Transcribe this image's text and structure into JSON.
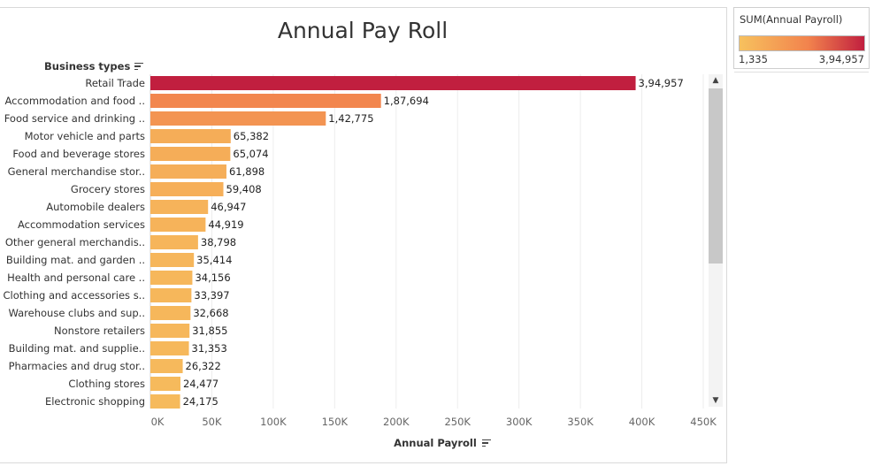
{
  "chart_data": {
    "type": "bar",
    "orientation": "horizontal",
    "title": "Annual Pay Roll",
    "row_header": "Business types",
    "xlabel": "Annual Payroll",
    "xlim": [
      0,
      450000
    ],
    "x_ticks": [
      0,
      50000,
      100000,
      150000,
      200000,
      250000,
      300000,
      350000,
      400000,
      450000
    ],
    "x_tick_labels": [
      "0K",
      "50K",
      "100K",
      "150K",
      "200K",
      "250K",
      "300K",
      "350K",
      "400K",
      "450K"
    ],
    "grid": "vertical gridlines",
    "categories": [
      "Retail Trade",
      "Accommodation and food ..",
      "Food service and drinking ..",
      "Motor vehicle and parts",
      "Food and beverage stores",
      "General merchandise stor..",
      "Grocery stores",
      "Automobile dealers",
      "Accommodation services",
      "Other general merchandis..",
      "Building mat. and garden ..",
      "Health and personal care ..",
      "Clothing and accessories s..",
      "Warehouse clubs and sup..",
      "Nonstore retailers",
      "Building mat. and supplie..",
      "Pharmacies and drug stor..",
      "Clothing stores",
      "Electronic shopping"
    ],
    "values": [
      394957,
      187694,
      142775,
      65382,
      65074,
      61898,
      59408,
      46947,
      44919,
      38798,
      35414,
      34156,
      33397,
      32668,
      31855,
      31353,
      26322,
      24477,
      24175
    ],
    "value_labels": [
      "3,94,957",
      "1,87,694",
      "1,42,775",
      "65,382",
      "65,074",
      "61,898",
      "59,408",
      "46,947",
      "44,919",
      "38,798",
      "35,414",
      "34,156",
      "33,397",
      "32,668",
      "31,855",
      "31,353",
      "26,322",
      "24,477",
      "24,175"
    ],
    "color_legend": {
      "title": "SUM(Annual Payroll)",
      "min_label": "1,335",
      "max_label": "3,94,957",
      "min": 1335,
      "max": 394957,
      "low_color": "#f7c15e",
      "mid_color": "#f2834d",
      "high_color": "#c11f3f",
      "placement": "top-right"
    }
  }
}
